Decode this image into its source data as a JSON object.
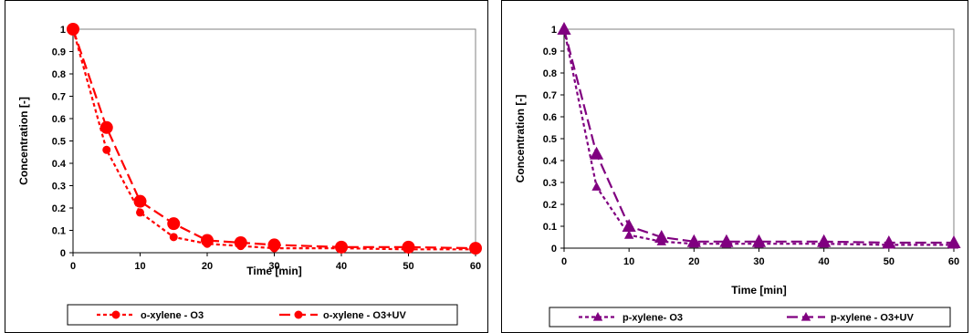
{
  "chart_data": [
    {
      "type": "line",
      "xlabel": "Time [min]",
      "ylabel": "Concentration [-]",
      "xlim": [
        0,
        60
      ],
      "ylim": [
        0,
        1
      ],
      "xticks": [
        0,
        10,
        20,
        30,
        40,
        50,
        60
      ],
      "yticks": [
        0,
        0.1,
        0.2,
        0.3,
        0.4,
        0.5,
        0.6,
        0.7,
        0.8,
        0.9,
        1
      ],
      "ytick_labels": [
        "0",
        "0.1",
        "0.2",
        "0.3",
        "0.4",
        "0.5",
        "0.6",
        "0.7",
        "0.8",
        "0.9",
        "1"
      ],
      "legend_position": "bottom",
      "series": [
        {
          "name": "o-xylene - O3",
          "color": "#ff0000",
          "line": "dotted",
          "marker": "circle-small",
          "x": [
            0,
            5,
            10,
            15,
            20,
            25,
            30,
            40,
            50,
            60
          ],
          "y": [
            1,
            0.46,
            0.18,
            0.07,
            0.04,
            0.03,
            0.02,
            0.02,
            0.015,
            0.015
          ]
        },
        {
          "name": "o-xylene - O3+UV",
          "color": "#ff0000",
          "line": "dashed",
          "marker": "circle-large",
          "x": [
            0,
            5,
            10,
            15,
            20,
            25,
            30,
            40,
            50,
            60
          ],
          "y": [
            1,
            0.56,
            0.23,
            0.13,
            0.055,
            0.045,
            0.035,
            0.025,
            0.025,
            0.02
          ]
        }
      ]
    },
    {
      "type": "line",
      "xlabel": "Time [min]",
      "ylabel": "Concentration [-]",
      "xlim": [
        0,
        60
      ],
      "ylim": [
        0,
        1
      ],
      "xticks": [
        0,
        10,
        20,
        30,
        40,
        50,
        60
      ],
      "yticks": [
        0,
        0.1,
        0.2,
        0.3,
        0.4,
        0.5,
        0.6,
        0.7,
        0.8,
        0.9,
        1
      ],
      "ytick_labels": [
        "0",
        "0.1",
        "0.2",
        "0.3",
        "0.4",
        "0.5",
        "0.6",
        "0.7",
        "0.8",
        "0.9",
        "1"
      ],
      "legend_position": "bottom",
      "series": [
        {
          "name": "p-xylene- O3",
          "color": "#800080",
          "line": "dotted",
          "marker": "triangle-small",
          "x": [
            0,
            5,
            10,
            15,
            20,
            25,
            30,
            40,
            50,
            60
          ],
          "y": [
            1,
            0.28,
            0.06,
            0.03,
            0.02,
            0.02,
            0.02,
            0.02,
            0.015,
            0.015
          ]
        },
        {
          "name": "p-xylene - O3+UV",
          "color": "#800080",
          "line": "dashed",
          "marker": "triangle-large",
          "x": [
            0,
            5,
            10,
            15,
            20,
            25,
            30,
            40,
            50,
            60
          ],
          "y": [
            1,
            0.43,
            0.1,
            0.05,
            0.03,
            0.03,
            0.03,
            0.03,
            0.025,
            0.025
          ]
        }
      ]
    }
  ]
}
